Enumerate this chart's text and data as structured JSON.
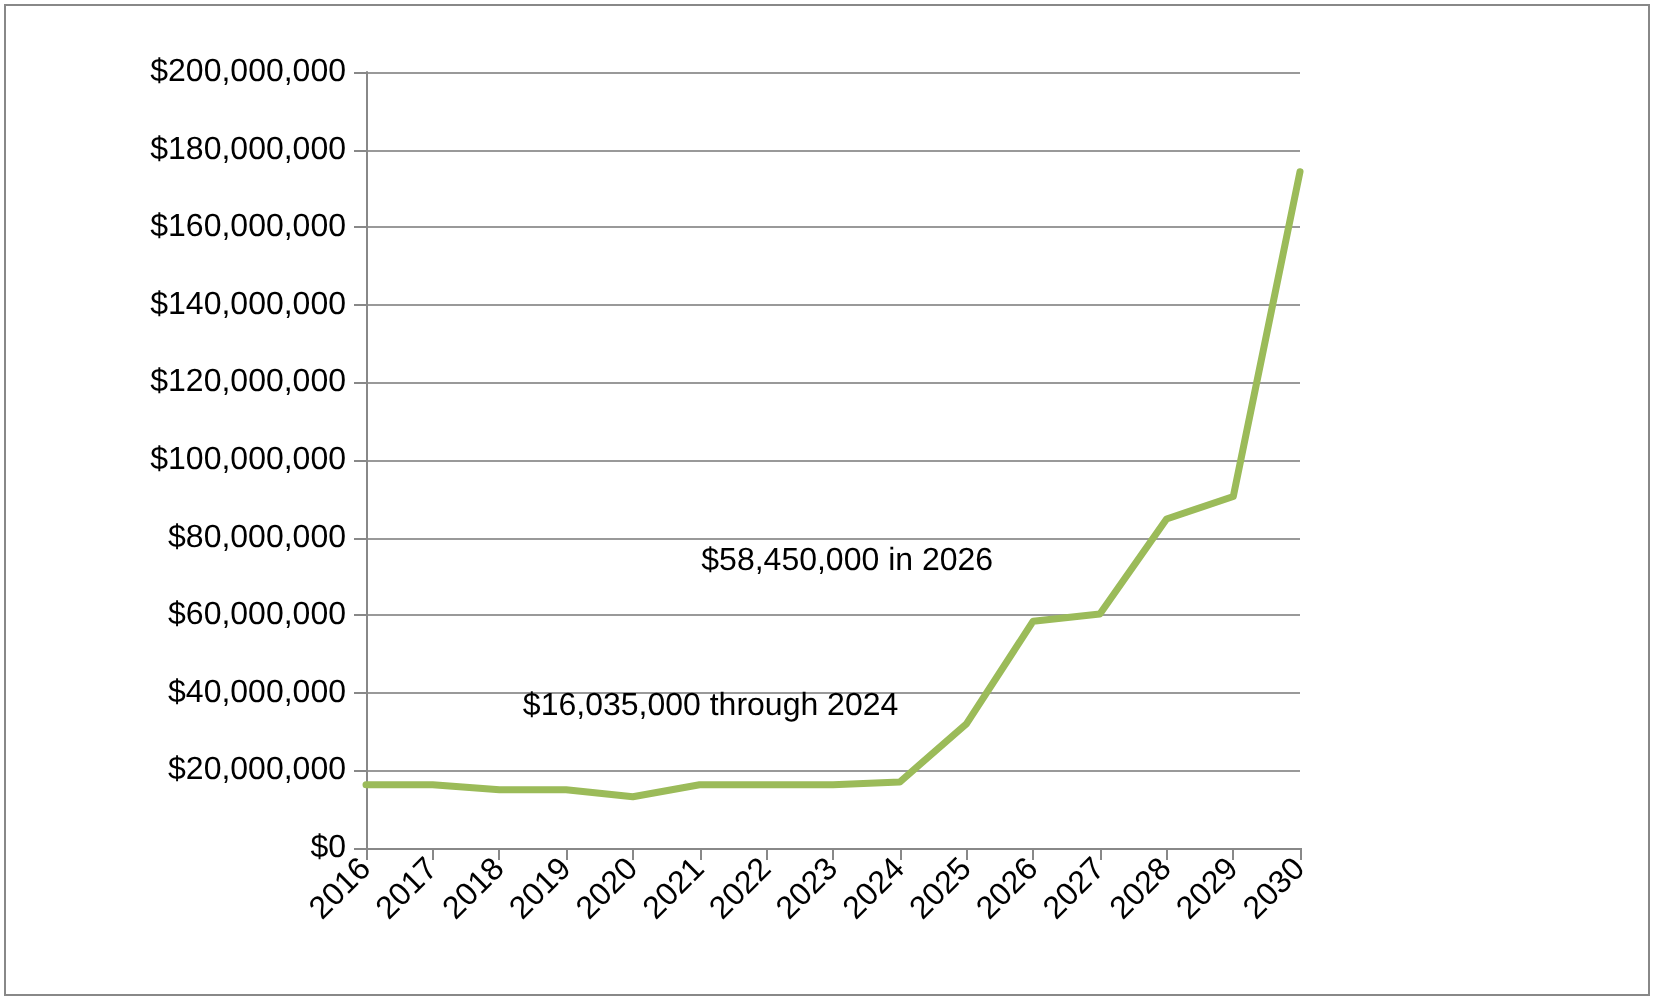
{
  "chart_data": {
    "type": "line",
    "categories": [
      "2016",
      "2017",
      "2018",
      "2019",
      "2020",
      "2021",
      "2022",
      "2023",
      "2024",
      "2025",
      "2026",
      "2027",
      "2028",
      "2029",
      "2030"
    ],
    "series": [
      {
        "color": "#9bbb59",
        "values": [
          16300000,
          16300000,
          15000000,
          15000000,
          13200000,
          16300000,
          16300000,
          16300000,
          17000000,
          32000000,
          58450000,
          60300000,
          84800000,
          90600000,
          174300000
        ]
      }
    ],
    "ylim": [
      0,
      200000000
    ],
    "yticks": [
      {
        "value": 0,
        "label": "$0"
      },
      {
        "value": 20000000,
        "label": "$20,000,000"
      },
      {
        "value": 40000000,
        "label": "$40,000,000"
      },
      {
        "value": 60000000,
        "label": "$60,000,000"
      },
      {
        "value": 80000000,
        "label": "$80,000,000"
      },
      {
        "value": 100000000,
        "label": "$100,000,000"
      },
      {
        "value": 120000000,
        "label": "$120,000,000"
      },
      {
        "value": 140000000,
        "label": "$140,000,000"
      },
      {
        "value": 160000000,
        "label": "$160,000,000"
      },
      {
        "value": 180000000,
        "label": "$180,000,000"
      },
      {
        "value": 200000000,
        "label": "$200,000,000"
      }
    ],
    "annotations": [
      {
        "text": "$16,035,000 through 2024",
        "x": "2020",
        "y": 16035000
      },
      {
        "text": "$58,450,000 in 2026",
        "x": "2026",
        "y": 58450000
      }
    ],
    "grid": "y",
    "marker": "none",
    "line_style": "solid"
  }
}
